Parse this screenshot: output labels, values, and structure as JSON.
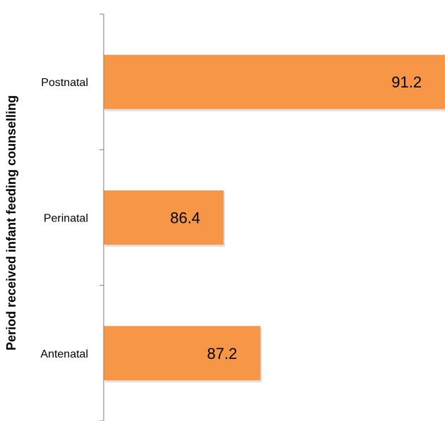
{
  "chart_data": {
    "type": "bar",
    "orientation": "horizontal",
    "categories": [
      "Postnatal",
      "Perinatal",
      "Antenatal"
    ],
    "values": [
      91.2,
      86.4,
      87.2
    ],
    "title": "",
    "xlabel": "",
    "ylabel": "Period received infant feeding counselling",
    "xlim": [
      83.8,
      91.2
    ],
    "grid": false,
    "legend": "none",
    "bar_color": "#F79646",
    "axis_color": "#7f7f7f"
  }
}
